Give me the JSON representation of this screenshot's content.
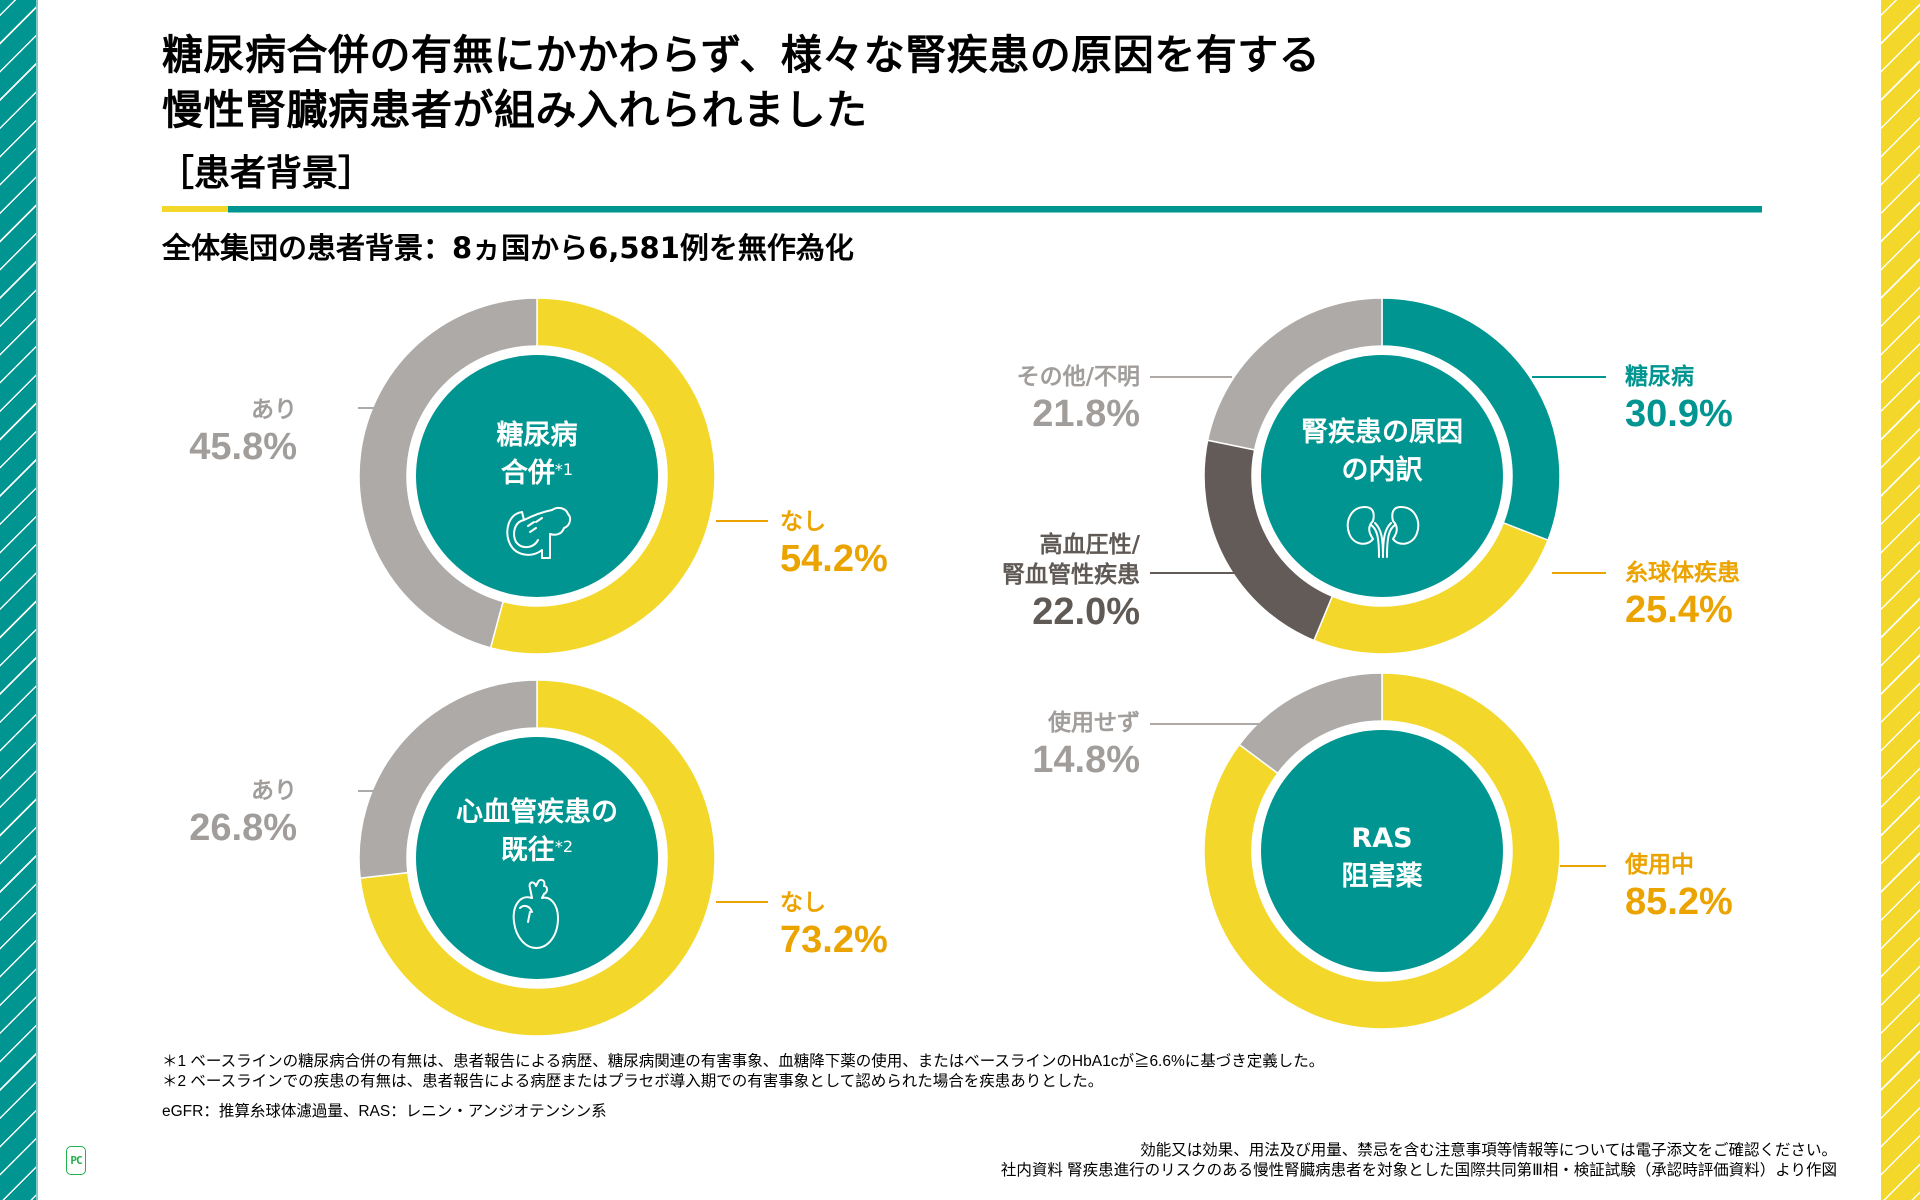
{
  "header": {
    "title_line1": "糖尿病合併の有無にかかわらず、様々な腎疾患の原因を有する",
    "title_line2": "慢性腎臓病患者が組み入れられました",
    "section": "［患者背景］",
    "subtitle": "全体集団の患者背景：8ヵ国から6,581例を無作為化"
  },
  "colors": {
    "teal": "#009590",
    "yellow": "#f3d82b",
    "gray": "#aeaaa8",
    "dark_gray": "#625b58",
    "orange_text": "#eba300",
    "gray_text": "#a19d9b"
  },
  "chart_data": [
    {
      "type": "pie",
      "variant": "donut",
      "id": "diabetes",
      "center_label": [
        "糖尿病",
        "合併"
      ],
      "center_note": "*1",
      "icon": "pancreas-icon",
      "slices": [
        {
          "label": "なし",
          "value": 54.2,
          "display": "54.2%",
          "color": "#f3d82b"
        },
        {
          "label": "あり",
          "value": 45.8,
          "display": "45.8%",
          "color": "#aeaaa8"
        }
      ]
    },
    {
      "type": "pie",
      "variant": "donut",
      "id": "kidney-cause",
      "center_label": [
        "腎疾患の原因",
        "の内訳"
      ],
      "center_note": "",
      "icon": "kidney-icon",
      "slices": [
        {
          "label": "糖尿病",
          "value": 30.9,
          "display": "30.9%",
          "color": "#009590"
        },
        {
          "label": "糸球体疾患",
          "value": 25.4,
          "display": "25.4%",
          "color": "#f3d82b"
        },
        {
          "label": "高血圧性/腎血管性疾患",
          "label_lines": [
            "高血圧性/",
            "腎血管性疾患"
          ],
          "value": 22.0,
          "display": "22.0%",
          "color": "#625b58"
        },
        {
          "label": "その他/不明",
          "value": 21.8,
          "display": "21.8%",
          "color": "#aeaaa8"
        }
      ]
    },
    {
      "type": "pie",
      "variant": "donut",
      "id": "cvd-history",
      "center_label": [
        "心血管疾患の",
        "既往"
      ],
      "center_note": "*2",
      "icon": "heart-icon",
      "slices": [
        {
          "label": "なし",
          "value": 73.2,
          "display": "73.2%",
          "color": "#f3d82b"
        },
        {
          "label": "あり",
          "value": 26.8,
          "display": "26.8%",
          "color": "#aeaaa8"
        }
      ]
    },
    {
      "type": "pie",
      "variant": "donut",
      "id": "ras-inhibitor",
      "center_label": [
        "RAS",
        "阻害薬"
      ],
      "center_note": "",
      "icon": "",
      "slices": [
        {
          "label": "使用中",
          "value": 85.2,
          "display": "85.2%",
          "color": "#f3d82b"
        },
        {
          "label": "使用せず",
          "value": 14.8,
          "display": "14.8%",
          "color": "#aeaaa8"
        }
      ]
    }
  ],
  "footnotes": {
    "note1": "＊1 ベースラインの糖尿病合併の有無は、患者報告による病歴、糖尿病関連の有害事象、血糖降下薬の使用、またはベースラインのHbA1cが≧6.6%に基づき定義した。",
    "note2": "＊2 ベースラインでの疾患の有無は、患者報告による病歴またはプラセボ導入期での有害事象として認められた場合を疾患ありとした。",
    "abbr": "eGFR：推算糸球体濾過量、RAS：レニン・アンジオテンシン系"
  },
  "footer": {
    "line1": "効能又は効果、用法及び用量、禁忌を含む注意事項等情報等については電子添文をご確認ください。",
    "line2": "社内資料 腎疾患進行のリスクのある慢性腎臓病患者を対象とした国際共同第Ⅲ相・検証試験（承認時評価資料）より作図",
    "logo": "PC"
  }
}
